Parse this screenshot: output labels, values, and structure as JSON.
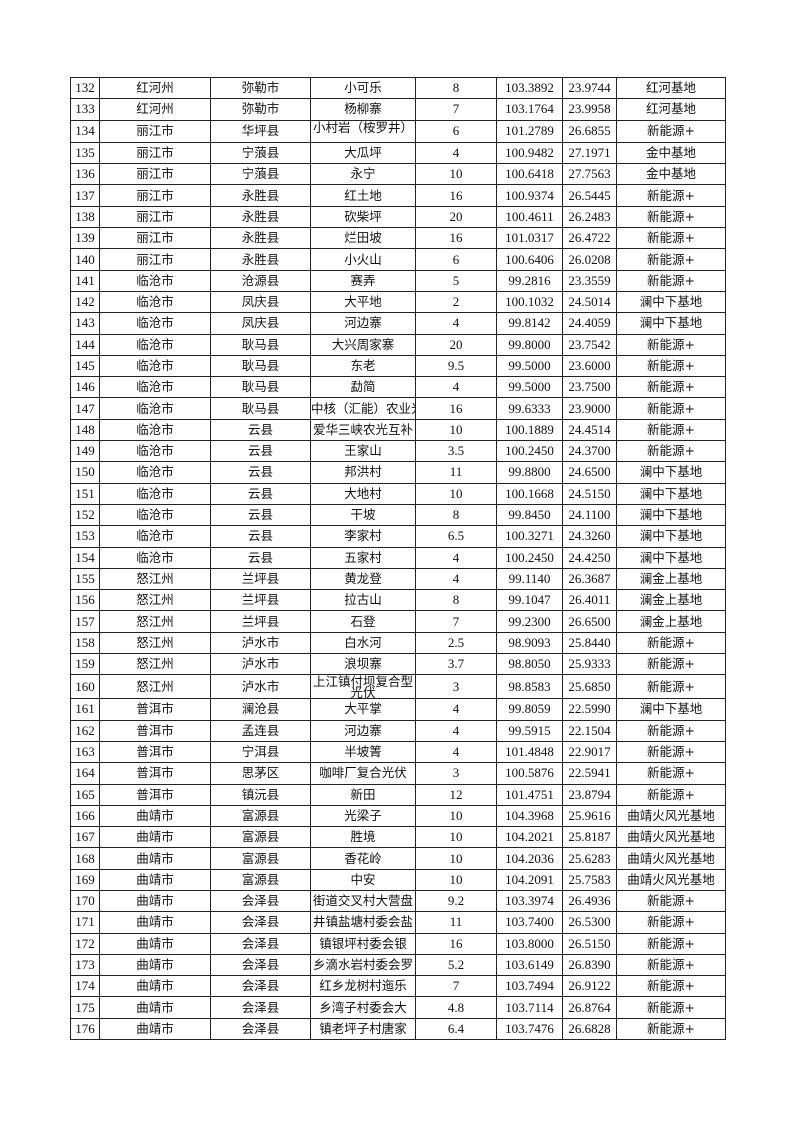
{
  "rows": [
    [
      "132",
      "红河州",
      "弥勒市",
      "小可乐",
      "8",
      "103.3892",
      "23.9744",
      "红河基地"
    ],
    [
      "133",
      "红河州",
      "弥勒市",
      "杨柳寨",
      "7",
      "103.1764",
      "23.9958",
      "红河基地"
    ],
    [
      "134",
      "丽江市",
      "华坪县",
      "小村岩（桉罗井）",
      "6",
      "101.2789",
      "26.6855",
      "新能源+"
    ],
    [
      "135",
      "丽江市",
      "宁蒗县",
      "大瓜坪",
      "4",
      "100.9482",
      "27.1971",
      "金中基地"
    ],
    [
      "136",
      "丽江市",
      "宁蒗县",
      "永宁",
      "10",
      "100.6418",
      "27.7563",
      "金中基地"
    ],
    [
      "137",
      "丽江市",
      "永胜县",
      "红土地",
      "16",
      "100.9374",
      "26.5445",
      "新能源+"
    ],
    [
      "138",
      "丽江市",
      "永胜县",
      "砍柴坪",
      "20",
      "100.4611",
      "26.2483",
      "新能源+"
    ],
    [
      "139",
      "丽江市",
      "永胜县",
      "烂田坡",
      "16",
      "101.0317",
      "26.4722",
      "新能源+"
    ],
    [
      "140",
      "丽江市",
      "永胜县",
      "小火山",
      "6",
      "100.6406",
      "26.0208",
      "新能源+"
    ],
    [
      "141",
      "临沧市",
      "沧源县",
      "赛弄",
      "5",
      "99.2816",
      "23.3559",
      "新能源+"
    ],
    [
      "142",
      "临沧市",
      "凤庆县",
      "大平地",
      "2",
      "100.1032",
      "24.5014",
      "澜中下基地"
    ],
    [
      "143",
      "临沧市",
      "凤庆县",
      "河边寨",
      "4",
      "99.8142",
      "24.4059",
      "澜中下基地"
    ],
    [
      "144",
      "临沧市",
      "耿马县",
      "大兴周家寨",
      "20",
      "99.8000",
      "23.7542",
      "新能源+"
    ],
    [
      "145",
      "临沧市",
      "耿马县",
      "东老",
      "9.5",
      "99.5000",
      "23.6000",
      "新能源+"
    ],
    [
      "146",
      "临沧市",
      "耿马县",
      "勐简",
      "4",
      "99.5000",
      "23.7500",
      "新能源+"
    ],
    [
      "147",
      "临沧市",
      "耿马县",
      "中核（汇能）农业光",
      "16",
      "99.6333",
      "23.9000",
      "新能源+"
    ],
    [
      "148",
      "临沧市",
      "云县",
      "爱华三峡农光互补",
      "10",
      "100.1889",
      "24.4514",
      "新能源+"
    ],
    [
      "149",
      "临沧市",
      "云县",
      "王家山",
      "3.5",
      "100.2450",
      "24.3700",
      "新能源+"
    ],
    [
      "150",
      "临沧市",
      "云县",
      "邦洪村",
      "11",
      "99.8800",
      "24.6500",
      "澜中下基地"
    ],
    [
      "151",
      "临沧市",
      "云县",
      "大地村",
      "10",
      "100.1668",
      "24.5150",
      "澜中下基地"
    ],
    [
      "152",
      "临沧市",
      "云县",
      "干坡",
      "8",
      "99.8450",
      "24.1100",
      "澜中下基地"
    ],
    [
      "153",
      "临沧市",
      "云县",
      "李家村",
      "6.5",
      "100.3271",
      "24.3260",
      "澜中下基地"
    ],
    [
      "154",
      "临沧市",
      "云县",
      "五家村",
      "4",
      "100.2450",
      "24.4250",
      "澜中下基地"
    ],
    [
      "155",
      "怒江州",
      "兰坪县",
      "黄龙登",
      "4",
      "99.1140",
      "26.3687",
      "澜金上基地"
    ],
    [
      "156",
      "怒江州",
      "兰坪县",
      "拉古山",
      "8",
      "99.1047",
      "26.4011",
      "澜金上基地"
    ],
    [
      "157",
      "怒江州",
      "兰坪县",
      "石登",
      "7",
      "99.2300",
      "26.6500",
      "澜金上基地"
    ],
    [
      "158",
      "怒江州",
      "泸水市",
      "白水河",
      "2.5",
      "98.9093",
      "25.8440",
      "新能源+"
    ],
    [
      "159",
      "怒江州",
      "泸水市",
      "浪坝寨",
      "3.7",
      "98.8050",
      "25.9333",
      "新能源+"
    ],
    [
      "160",
      "怒江州",
      "泸水市",
      "上江镇付坝复合型光伏",
      "3",
      "98.8583",
      "25.6850",
      "新能源+"
    ],
    [
      "161",
      "普洱市",
      "澜沧县",
      "大平掌",
      "4",
      "99.8059",
      "22.5990",
      "澜中下基地"
    ],
    [
      "162",
      "普洱市",
      "孟连县",
      "河边寨",
      "4",
      "99.5915",
      "22.1504",
      "新能源+"
    ],
    [
      "163",
      "普洱市",
      "宁洱县",
      "半坡箐",
      "4",
      "101.4848",
      "22.9017",
      "新能源+"
    ],
    [
      "164",
      "普洱市",
      "思茅区",
      "咖啡厂复合光伏",
      "3",
      "100.5876",
      "22.5941",
      "新能源+"
    ],
    [
      "165",
      "普洱市",
      "镇沅县",
      "新田",
      "12",
      "101.4751",
      "23.8794",
      "新能源+"
    ],
    [
      "166",
      "曲靖市",
      "富源县",
      "光梁子",
      "10",
      "104.3968",
      "25.9616",
      "曲靖火风光基地"
    ],
    [
      "167",
      "曲靖市",
      "富源县",
      "胜境",
      "10",
      "104.2021",
      "25.8187",
      "曲靖火风光基地"
    ],
    [
      "168",
      "曲靖市",
      "富源县",
      "香花岭",
      "10",
      "104.2036",
      "25.6283",
      "曲靖火风光基地"
    ],
    [
      "169",
      "曲靖市",
      "富源县",
      "中安",
      "10",
      "104.2091",
      "25.7583",
      "曲靖火风光基地"
    ],
    [
      "170",
      "曲靖市",
      "会泽县",
      "街道交叉村大营盘",
      "9.2",
      "103.3974",
      "26.4936",
      "新能源+"
    ],
    [
      "171",
      "曲靖市",
      "会泽县",
      "井镇盐塘村委会盐",
      "11",
      "103.7400",
      "26.5300",
      "新能源+"
    ],
    [
      "172",
      "曲靖市",
      "会泽县",
      "镇银坪村委会银",
      "16",
      "103.8000",
      "26.5150",
      "新能源+"
    ],
    [
      "173",
      "曲靖市",
      "会泽县",
      "乡滴水岩村委会罗",
      "5.2",
      "103.6149",
      "26.8390",
      "新能源+"
    ],
    [
      "174",
      "曲靖市",
      "会泽县",
      "红乡龙树村迤乐",
      "7",
      "103.7494",
      "26.9122",
      "新能源+"
    ],
    [
      "175",
      "曲靖市",
      "会泽县",
      "乡湾子村委会大",
      "4.8",
      "103.7114",
      "26.8764",
      "新能源+"
    ],
    [
      "176",
      "曲靖市",
      "会泽县",
      "镇老坪子村唐家",
      "6.4",
      "103.7476",
      "26.6828",
      "新能源+"
    ]
  ]
}
